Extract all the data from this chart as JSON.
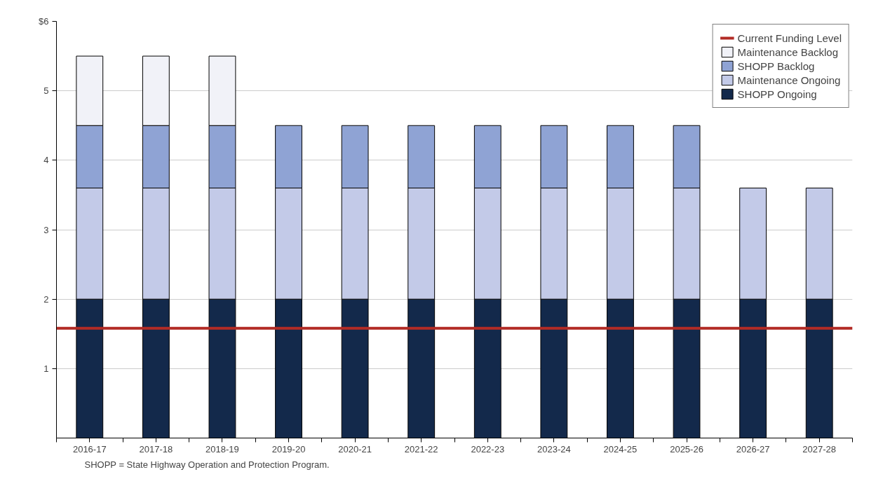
{
  "chart_data": {
    "type": "bar",
    "stacked": true,
    "categories": [
      "2016-17",
      "2017-18",
      "2018-19",
      "2019-20",
      "2020-21",
      "2021-22",
      "2022-23",
      "2023-24",
      "2024-25",
      "2025-26",
      "2026-27",
      "2027-28"
    ],
    "series": [
      {
        "name": "SHOPP Ongoing",
        "color": "#13294b",
        "values": [
          2,
          2,
          2,
          2,
          2,
          2,
          2,
          2,
          2,
          2,
          2,
          2
        ]
      },
      {
        "name": "Maintenance Ongoing",
        "color": "#c3cae8",
        "values": [
          1.6,
          1.6,
          1.6,
          1.6,
          1.6,
          1.6,
          1.6,
          1.6,
          1.6,
          1.6,
          1.6,
          1.6
        ]
      },
      {
        "name": "SHOPP Backlog",
        "color": "#8fa3d4",
        "values": [
          0.9,
          0.9,
          0.9,
          0.9,
          0.9,
          0.9,
          0.9,
          0.9,
          0.9,
          0.9,
          null,
          null
        ]
      },
      {
        "name": "Maintenance Backlog",
        "color": "#f1f2f8",
        "values": [
          1,
          1,
          1,
          null,
          null,
          null,
          null,
          null,
          null,
          null,
          null,
          null
        ]
      }
    ],
    "ref_lines": [
      {
        "axis": "y",
        "value": 1.58,
        "label": "Current Funding Level",
        "color": "#b22b25"
      }
    ],
    "ylim": [
      0,
      6
    ],
    "yticks": [
      1,
      2,
      3,
      4,
      5,
      {
        "value": 6,
        "label": "$6"
      }
    ],
    "grid": "y",
    "legend": "top right",
    "annotations": [
      "SHOPP = State Highway Operation and Protection Program."
    ]
  }
}
